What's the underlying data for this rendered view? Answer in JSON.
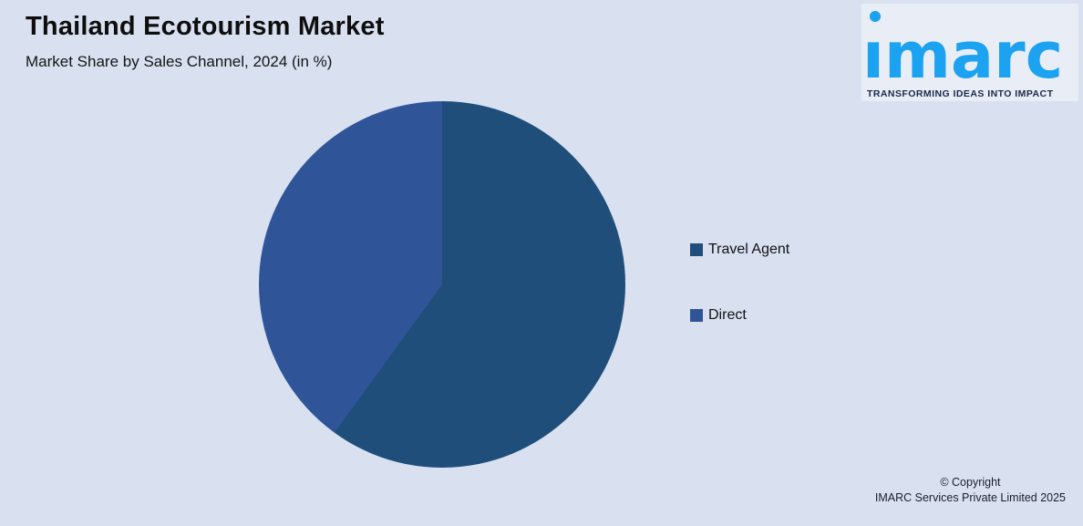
{
  "header": {
    "title": "Thailand Ecotourism Market",
    "subtitle": "Market Share by Sales Channel, 2024 (in %)"
  },
  "logo": {
    "wordmark": "imarc",
    "tagline": "TRANSFORMING IDEAS INTO IMPACT",
    "brand_color": "#1ba2f0",
    "tagline_color": "#1b2a4a"
  },
  "chart_data": {
    "type": "pie",
    "title": "Thailand Ecotourism Market",
    "subtitle": "Market Share by Sales Channel, 2024 (in %)",
    "labels": [
      "Travel Agent",
      "Direct"
    ],
    "values": [
      60,
      40
    ],
    "unit": "%",
    "colors": [
      "#1f4e7b",
      "#2f5598"
    ],
    "start_angle_deg": 0,
    "direction": "clockwise",
    "legend_position": "right",
    "data_labels_shown": false,
    "background_color": "#d9e1f1"
  },
  "footer": {
    "line1": "© Copyright",
    "line2": "IMARC Services Private Limited 2025"
  }
}
